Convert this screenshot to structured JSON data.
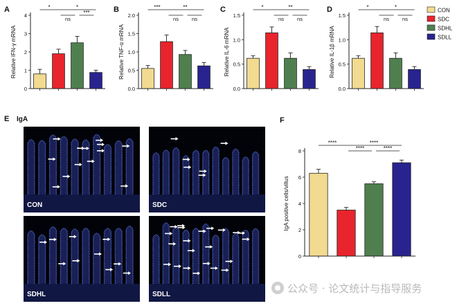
{
  "legend": {
    "items": [
      {
        "label": "CON",
        "color": "#f2da90"
      },
      {
        "label": "SDC",
        "color": "#e8242c"
      },
      {
        "label": "SDHL",
        "color": "#4f7f4f"
      },
      {
        "label": "SDLL",
        "color": "#28238f"
      }
    ]
  },
  "chart_data": [
    {
      "panel": "A",
      "type": "bar",
      "ylabel": "Relative IFN-γ mRNA",
      "categories": [
        "CON",
        "SDC",
        "SDHL",
        "SDLL"
      ],
      "values": [
        0.8,
        1.9,
        2.5,
        0.88
      ],
      "errors": [
        0.25,
        0.25,
        0.35,
        0.12
      ],
      "ylim": [
        0,
        4
      ],
      "ticks": [
        "0",
        "1",
        "2",
        "3",
        "4"
      ],
      "sig": [
        {
          "from": 0,
          "to": 1,
          "label": "*",
          "level": 1
        },
        {
          "from": 1,
          "to": 3,
          "label": "*",
          "level": 1
        },
        {
          "from": 1,
          "to": 2,
          "label": "ns",
          "level": 0
        },
        {
          "from": 2,
          "to": 3,
          "label": "***",
          "level": 0
        }
      ]
    },
    {
      "panel": "B",
      "type": "bar",
      "ylabel": "Relative TNF-α mRNA",
      "categories": [
        "CON",
        "SDC",
        "SDHL",
        "SDLL"
      ],
      "values": [
        0.55,
        1.28,
        0.93,
        0.62
      ],
      "errors": [
        0.08,
        0.18,
        0.11,
        0.09
      ],
      "ylim": [
        0,
        2
      ],
      "ticks": [
        "0.0",
        "0.5",
        "1.0",
        "1.5",
        "2.0"
      ],
      "sig": [
        {
          "from": 0,
          "to": 1,
          "label": "***",
          "level": 1
        },
        {
          "from": 1,
          "to": 3,
          "label": "**",
          "level": 1
        },
        {
          "from": 1,
          "to": 2,
          "label": "ns",
          "level": 0
        },
        {
          "from": 2,
          "to": 3,
          "label": "ns",
          "level": 0
        }
      ]
    },
    {
      "panel": "C",
      "type": "bar",
      "ylabel": "Relative IL-6 mRNA",
      "categories": [
        "CON",
        "SDC",
        "SDHL",
        "SDLL"
      ],
      "values": [
        0.62,
        1.14,
        0.62,
        0.39
      ],
      "errors": [
        0.05,
        0.12,
        0.11,
        0.06
      ],
      "ylim": [
        0,
        1.5
      ],
      "ticks": [
        "0.0",
        "0.5",
        "1.0",
        "1.5"
      ],
      "sig": [
        {
          "from": 0,
          "to": 1,
          "label": "*",
          "level": 1
        },
        {
          "from": 1,
          "to": 3,
          "label": "**",
          "level": 1
        },
        {
          "from": 1,
          "to": 2,
          "label": "ns",
          "level": 0
        },
        {
          "from": 2,
          "to": 3,
          "label": "ns",
          "level": 0
        }
      ]
    },
    {
      "panel": "D",
      "type": "bar",
      "ylabel": "Relative IL-1β mRNA",
      "categories": [
        "CON",
        "SDC",
        "SDHL",
        "SDLL"
      ],
      "values": [
        0.62,
        1.14,
        0.62,
        0.39
      ],
      "errors": [
        0.05,
        0.13,
        0.11,
        0.06
      ],
      "ylim": [
        0,
        1.5
      ],
      "ticks": [
        "0.0",
        "0.5",
        "1.0",
        "1.5"
      ],
      "sig": [
        {
          "from": 0,
          "to": 1,
          "label": "*",
          "level": 1
        },
        {
          "from": 1,
          "to": 3,
          "label": "*",
          "level": 1
        },
        {
          "from": 1,
          "to": 2,
          "label": "ns",
          "level": 0
        },
        {
          "from": 2,
          "to": 3,
          "label": "ns",
          "level": 0
        }
      ]
    },
    {
      "panel": "F",
      "type": "bar",
      "ylabel": "IgA positive cells/villus",
      "categories": [
        "CON",
        "SDC",
        "SDHL",
        "SDLL"
      ],
      "values": [
        6.3,
        3.5,
        5.5,
        7.1
      ],
      "errors": [
        0.3,
        0.2,
        0.15,
        0.2
      ],
      "ylim": [
        0,
        8
      ],
      "ticks": [
        "0",
        "2",
        "4",
        "6",
        "8"
      ],
      "sig": [
        {
          "from": 0,
          "to": 1,
          "label": "****",
          "level": 1
        },
        {
          "from": 1,
          "to": 3,
          "label": "****",
          "level": 1
        },
        {
          "from": 1,
          "to": 2,
          "label": "****",
          "level": 0
        },
        {
          "from": 2,
          "to": 3,
          "label": "****",
          "level": 0
        }
      ]
    }
  ],
  "panel_e": {
    "letter": "E",
    "title": "IgA",
    "images": [
      {
        "label": "CON",
        "arrows": 13
      },
      {
        "label": "SDC",
        "arrows": 6
      },
      {
        "label": "SDHL",
        "arrows": 10
      },
      {
        "label": "SDLL",
        "arrows": 22
      }
    ]
  },
  "watermark": {
    "text": "公众号 · 论文统计与指导服务"
  }
}
